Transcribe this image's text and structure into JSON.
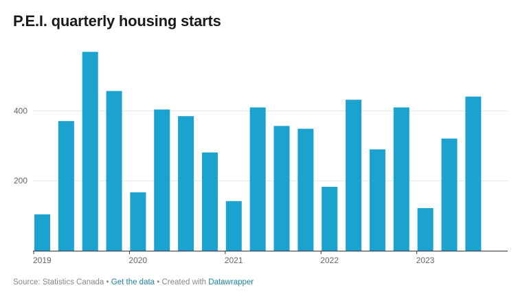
{
  "title": "P.E.I. quarterly housing starts",
  "footer": {
    "source_text": "Source: Statistics Canada",
    "separator": "•",
    "get_data": "Get the data",
    "created_with": "Created with",
    "datawrapper": "Datawrapper"
  },
  "colors": {
    "bar": "#1ba2cf",
    "grid": "#e6e6e6",
    "axis": "#333333",
    "tick_text": "#666666",
    "link": "#1d81a2"
  },
  "chart_data": {
    "type": "bar",
    "title": "P.E.I. quarterly housing starts",
    "categories": [
      "2019 Q1",
      "2019 Q2",
      "2019 Q3",
      "2019 Q4",
      "2020 Q1",
      "2020 Q2",
      "2020 Q3",
      "2020 Q4",
      "2021 Q1",
      "2021 Q2",
      "2021 Q3",
      "2021 Q4",
      "2022 Q1",
      "2022 Q2",
      "2022 Q3",
      "2022 Q4",
      "2023 Q1",
      "2023 Q2",
      "2023 Q3"
    ],
    "values": [
      104,
      371,
      569,
      457,
      167,
      404,
      385,
      281,
      142,
      410,
      357,
      349,
      183,
      432,
      290,
      410,
      122,
      321,
      441
    ],
    "x_tick_labels": [
      "2019",
      "2020",
      "2021",
      "2022",
      "2023"
    ],
    "y_ticks": [
      200,
      400
    ],
    "ylim": [
      0,
      570
    ],
    "grid": true,
    "legend": "none"
  }
}
